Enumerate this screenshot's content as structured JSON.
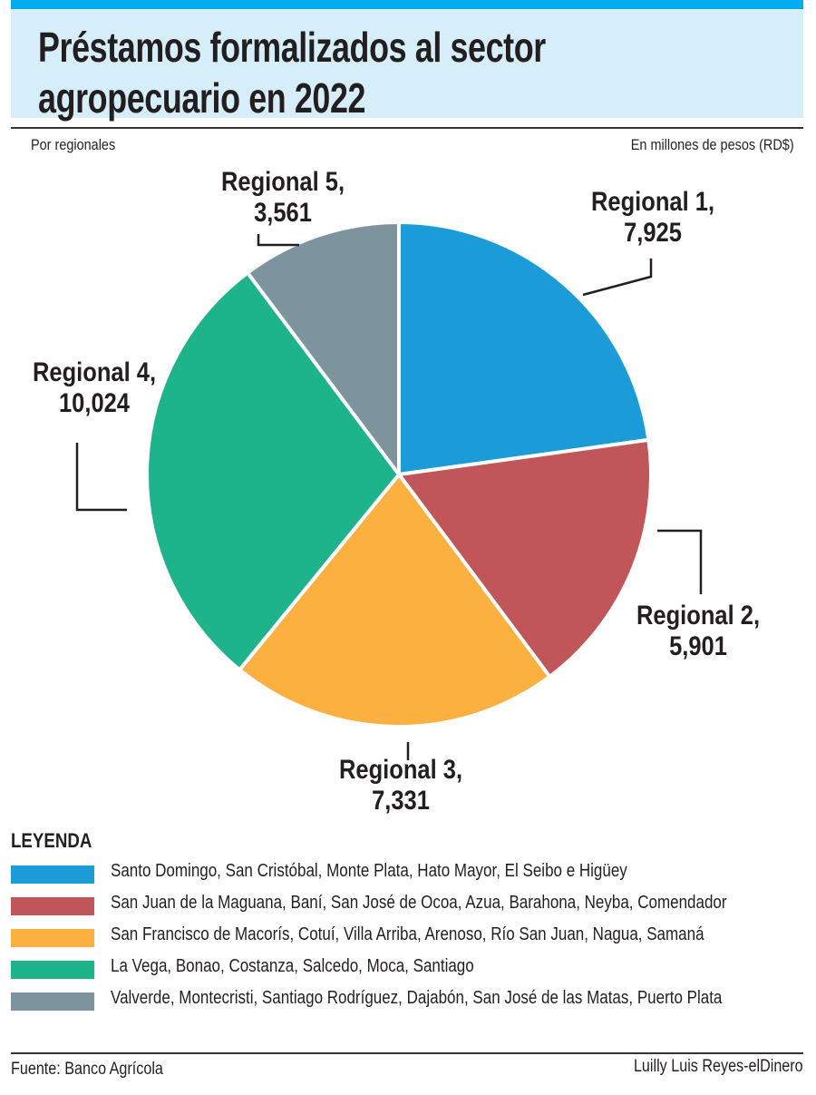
{
  "header": {
    "title_line1": "Préstamos formalizados al sector",
    "title_line2": "agropecuario en 2022",
    "subtitle_left": "Por regionales",
    "subtitle_right": "En millones de pesos (RD$)"
  },
  "chart_data": {
    "type": "pie",
    "title": "Préstamos formalizados al sector agropecuario en 2022",
    "categories": [
      "Regional 1",
      "Regional 2",
      "Regional 3",
      "Regional 4",
      "Regional 5"
    ],
    "values": [
      7925,
      5901,
      7331,
      10024,
      3561
    ],
    "value_labels": [
      "7,925",
      "5,901",
      "7,331",
      "10,024",
      "3,561"
    ],
    "label_names": [
      "Regional 1,",
      "Regional 2,",
      "Regional 3,",
      "Regional 4,",
      "Regional 5,"
    ],
    "colors": [
      "#1b9cd8",
      "#c0555a",
      "#fbb040",
      "#1db38b",
      "#7d939e"
    ],
    "start": "top",
    "direction": "clockwise"
  },
  "legend": {
    "title": "LEYENDA",
    "items": [
      "Santo Domingo, San Cristóbal, Monte Plata, Hato Mayor, El Seibo e Higüey",
      "San Juan de la Maguana, Baní, San José de Ocoa, Azua, Barahona, Neyba, Comendador",
      "San Francisco de Macorís, Cotuí, Villa Arriba, Arenoso, Río San Juan, Nagua, Samaná",
      "La Vega, Bonao, Costanza, Salcedo, Moca, Santiago",
      " Valverde, Montecristi, Santiago Rodríguez, Dajabón, San José de las Matas, Puerto Plata"
    ]
  },
  "footer": {
    "source": "Fuente: Banco Agrícola",
    "credit": "Luilly Luis Reyes-elDinero"
  }
}
